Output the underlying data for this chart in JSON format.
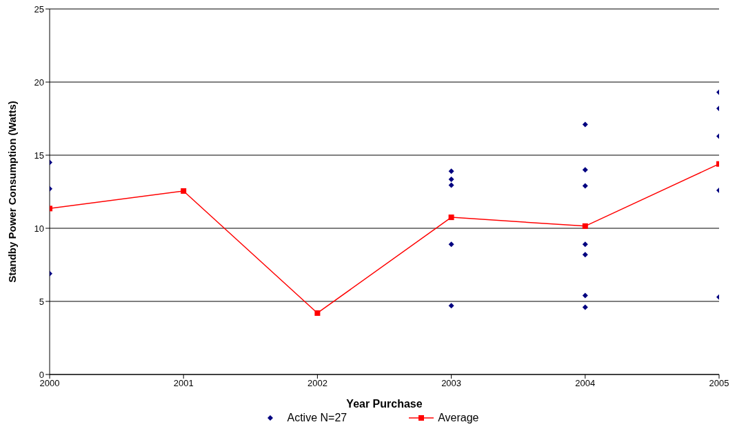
{
  "chart_data": {
    "type": "scatter",
    "xlabel": "Year Purchase",
    "ylabel": "Standby Power Consumption (Watts)",
    "xlim": [
      2000,
      2005
    ],
    "xticks": [
      2000,
      2001,
      2002,
      2003,
      2004,
      2005
    ],
    "ylim": [
      0,
      25
    ],
    "yticks": [
      0,
      5,
      10,
      15,
      20,
      25
    ],
    "grid": "y",
    "legend": "bottom",
    "series": [
      {
        "name": "Active  N=27",
        "type": "scatter",
        "marker": "diamond",
        "color": "#000080",
        "x": [
          2000,
          2000,
          2000,
          2003,
          2003,
          2003,
          2003,
          2003,
          2004,
          2004,
          2004,
          2004,
          2004,
          2004,
          2004,
          2005,
          2005,
          2005,
          2005,
          2005
        ],
        "values": [
          14.5,
          12.7,
          6.9,
          13.9,
          13.35,
          12.95,
          8.9,
          4.7,
          17.1,
          14,
          12.9,
          8.9,
          8.2,
          5.4,
          4.6,
          19.3,
          18.2,
          16.3,
          12.6,
          5.3
        ]
      },
      {
        "name": "Average",
        "type": "line",
        "marker": "square",
        "line_style": "solid",
        "color": "#ff0000",
        "x": [
          2000,
          2001,
          2002,
          2003,
          2004,
          2005
        ],
        "values": [
          11.35,
          12.55,
          4.2,
          10.75,
          10.15,
          14.4
        ]
      }
    ]
  }
}
